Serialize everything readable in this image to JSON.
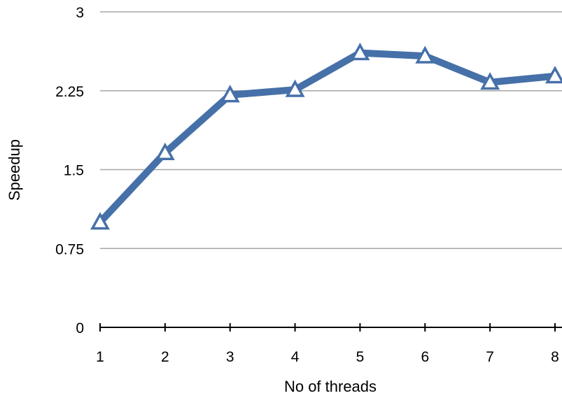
{
  "chart_data": {
    "type": "line",
    "title": "",
    "xlabel": "No of threads",
    "ylabel": "Speedup",
    "x": [
      1,
      2,
      3,
      4,
      5,
      6,
      7,
      8
    ],
    "x_tick_labels": [
      "1",
      "2",
      "3",
      "4",
      "5",
      "6",
      "7",
      "8"
    ],
    "ylim": [
      0,
      3
    ],
    "y_ticks": [
      0,
      0.75,
      1.5,
      2.25,
      3
    ],
    "y_tick_labels": [
      "0",
      "0.75",
      "1.5",
      "2.25",
      "3"
    ],
    "series": [
      {
        "values": [
          1.0,
          1.66,
          2.21,
          2.26,
          2.61,
          2.58,
          2.33,
          2.39
        ],
        "color": "#4670a8",
        "marker": "triangle-open"
      }
    ],
    "grid": "horizontal",
    "legend": "none"
  }
}
